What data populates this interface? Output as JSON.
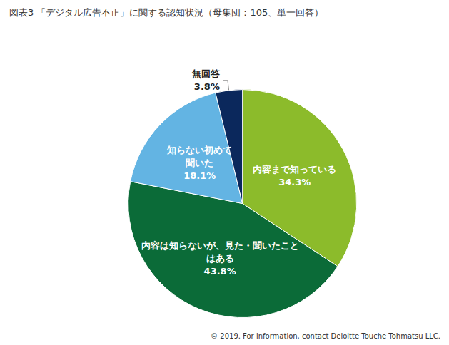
{
  "chart_data": {
    "type": "pie",
    "title": "図表3 「デジタル広告不正」に関する認知状況（母集団：105、単一回答）",
    "categories": [
      "内容まで知っている",
      "内容は知らないが、見た・聞いたことはある",
      "知らない初めて聞いた",
      "無回答"
    ],
    "values": [
      34.3,
      43.8,
      18.1,
      3.8
    ],
    "value_labels": [
      "34.3%",
      "43.8%",
      "18.1%",
      "3.8%"
    ],
    "colors": [
      "#8cbb2b",
      "#0b6b38",
      "#63b4e3",
      "#0b285c"
    ],
    "data_labels": true,
    "annotations": [
      "© 2019. For information, contact Deloitte Touche Tohmatsu LLC."
    ]
  }
}
